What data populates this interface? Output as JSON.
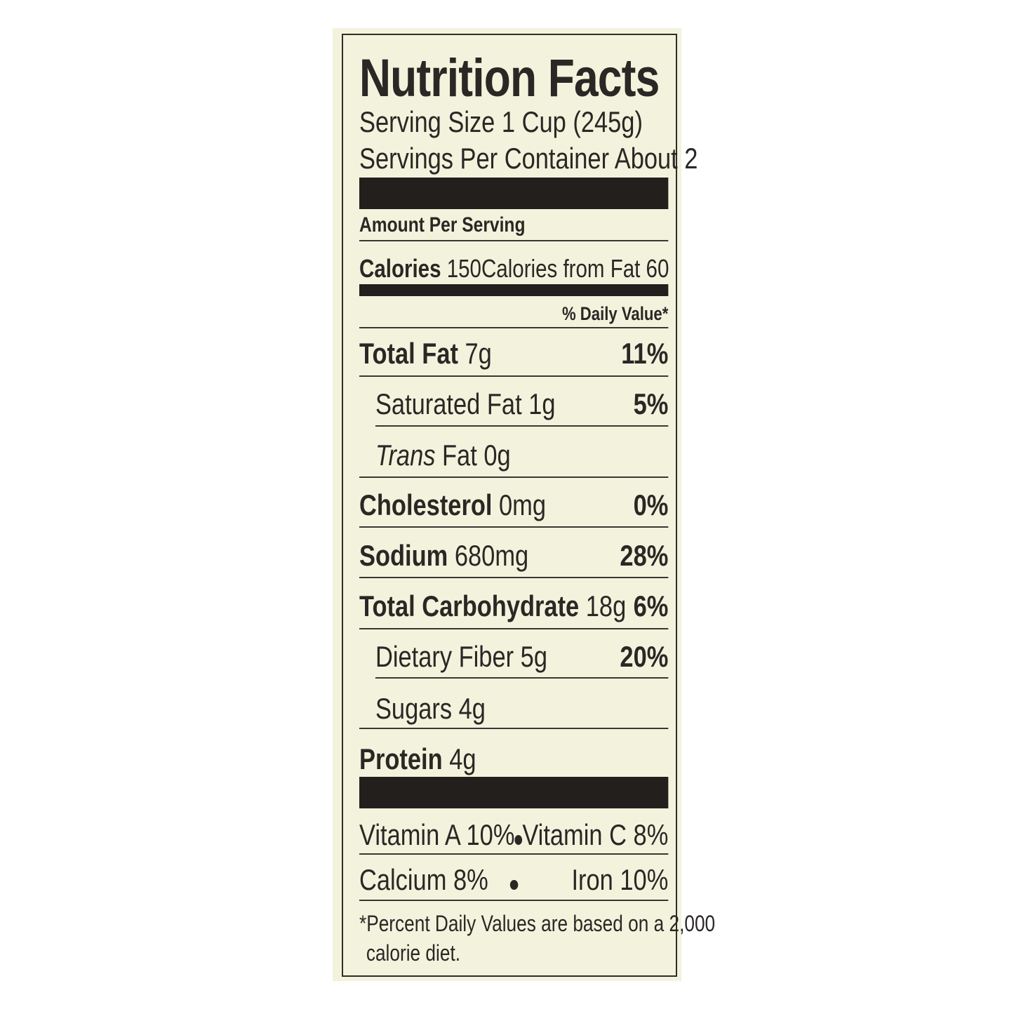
{
  "title": "Nutrition Facts",
  "serving_size": "Serving Size 1 Cup (245g)",
  "servings_per_container": "Servings Per Container About 2",
  "amount_per_serving": "Amount Per Serving",
  "calories": {
    "label": "Calories",
    "value": "150",
    "from_fat": "Calories from Fat 60"
  },
  "daily_value_header": "% Daily Value*",
  "nutrients": [
    {
      "label": "Total Fat",
      "amount": "7g",
      "dv": "11%"
    },
    {
      "label": "Saturated Fat",
      "amount": "1g",
      "dv": "5%"
    },
    {
      "label": "Trans",
      "amount": "Fat 0g",
      "dv": ""
    },
    {
      "label": "Cholesterol",
      "amount": "0mg",
      "dv": "0%"
    },
    {
      "label": "Sodium",
      "amount": "680mg",
      "dv": "28%"
    },
    {
      "label": "Total Carbohydrate",
      "amount": "18g",
      "dv": "6%"
    },
    {
      "label": "Dietary Fiber",
      "amount": "5g",
      "dv": "20%"
    },
    {
      "label": "Sugars",
      "amount": "4g",
      "dv": ""
    },
    {
      "label": "Protein",
      "amount": "4g",
      "dv": ""
    }
  ],
  "vitamins": {
    "vitamin_a": "Vitamin A 10%",
    "vitamin_c": "Vitamin C 8%",
    "calcium": "Calcium 8%",
    "iron": "Iron 10%"
  },
  "footnote": {
    "line1": "*Percent Daily Values are based on a 2,000",
    "line2": "calorie diet."
  }
}
